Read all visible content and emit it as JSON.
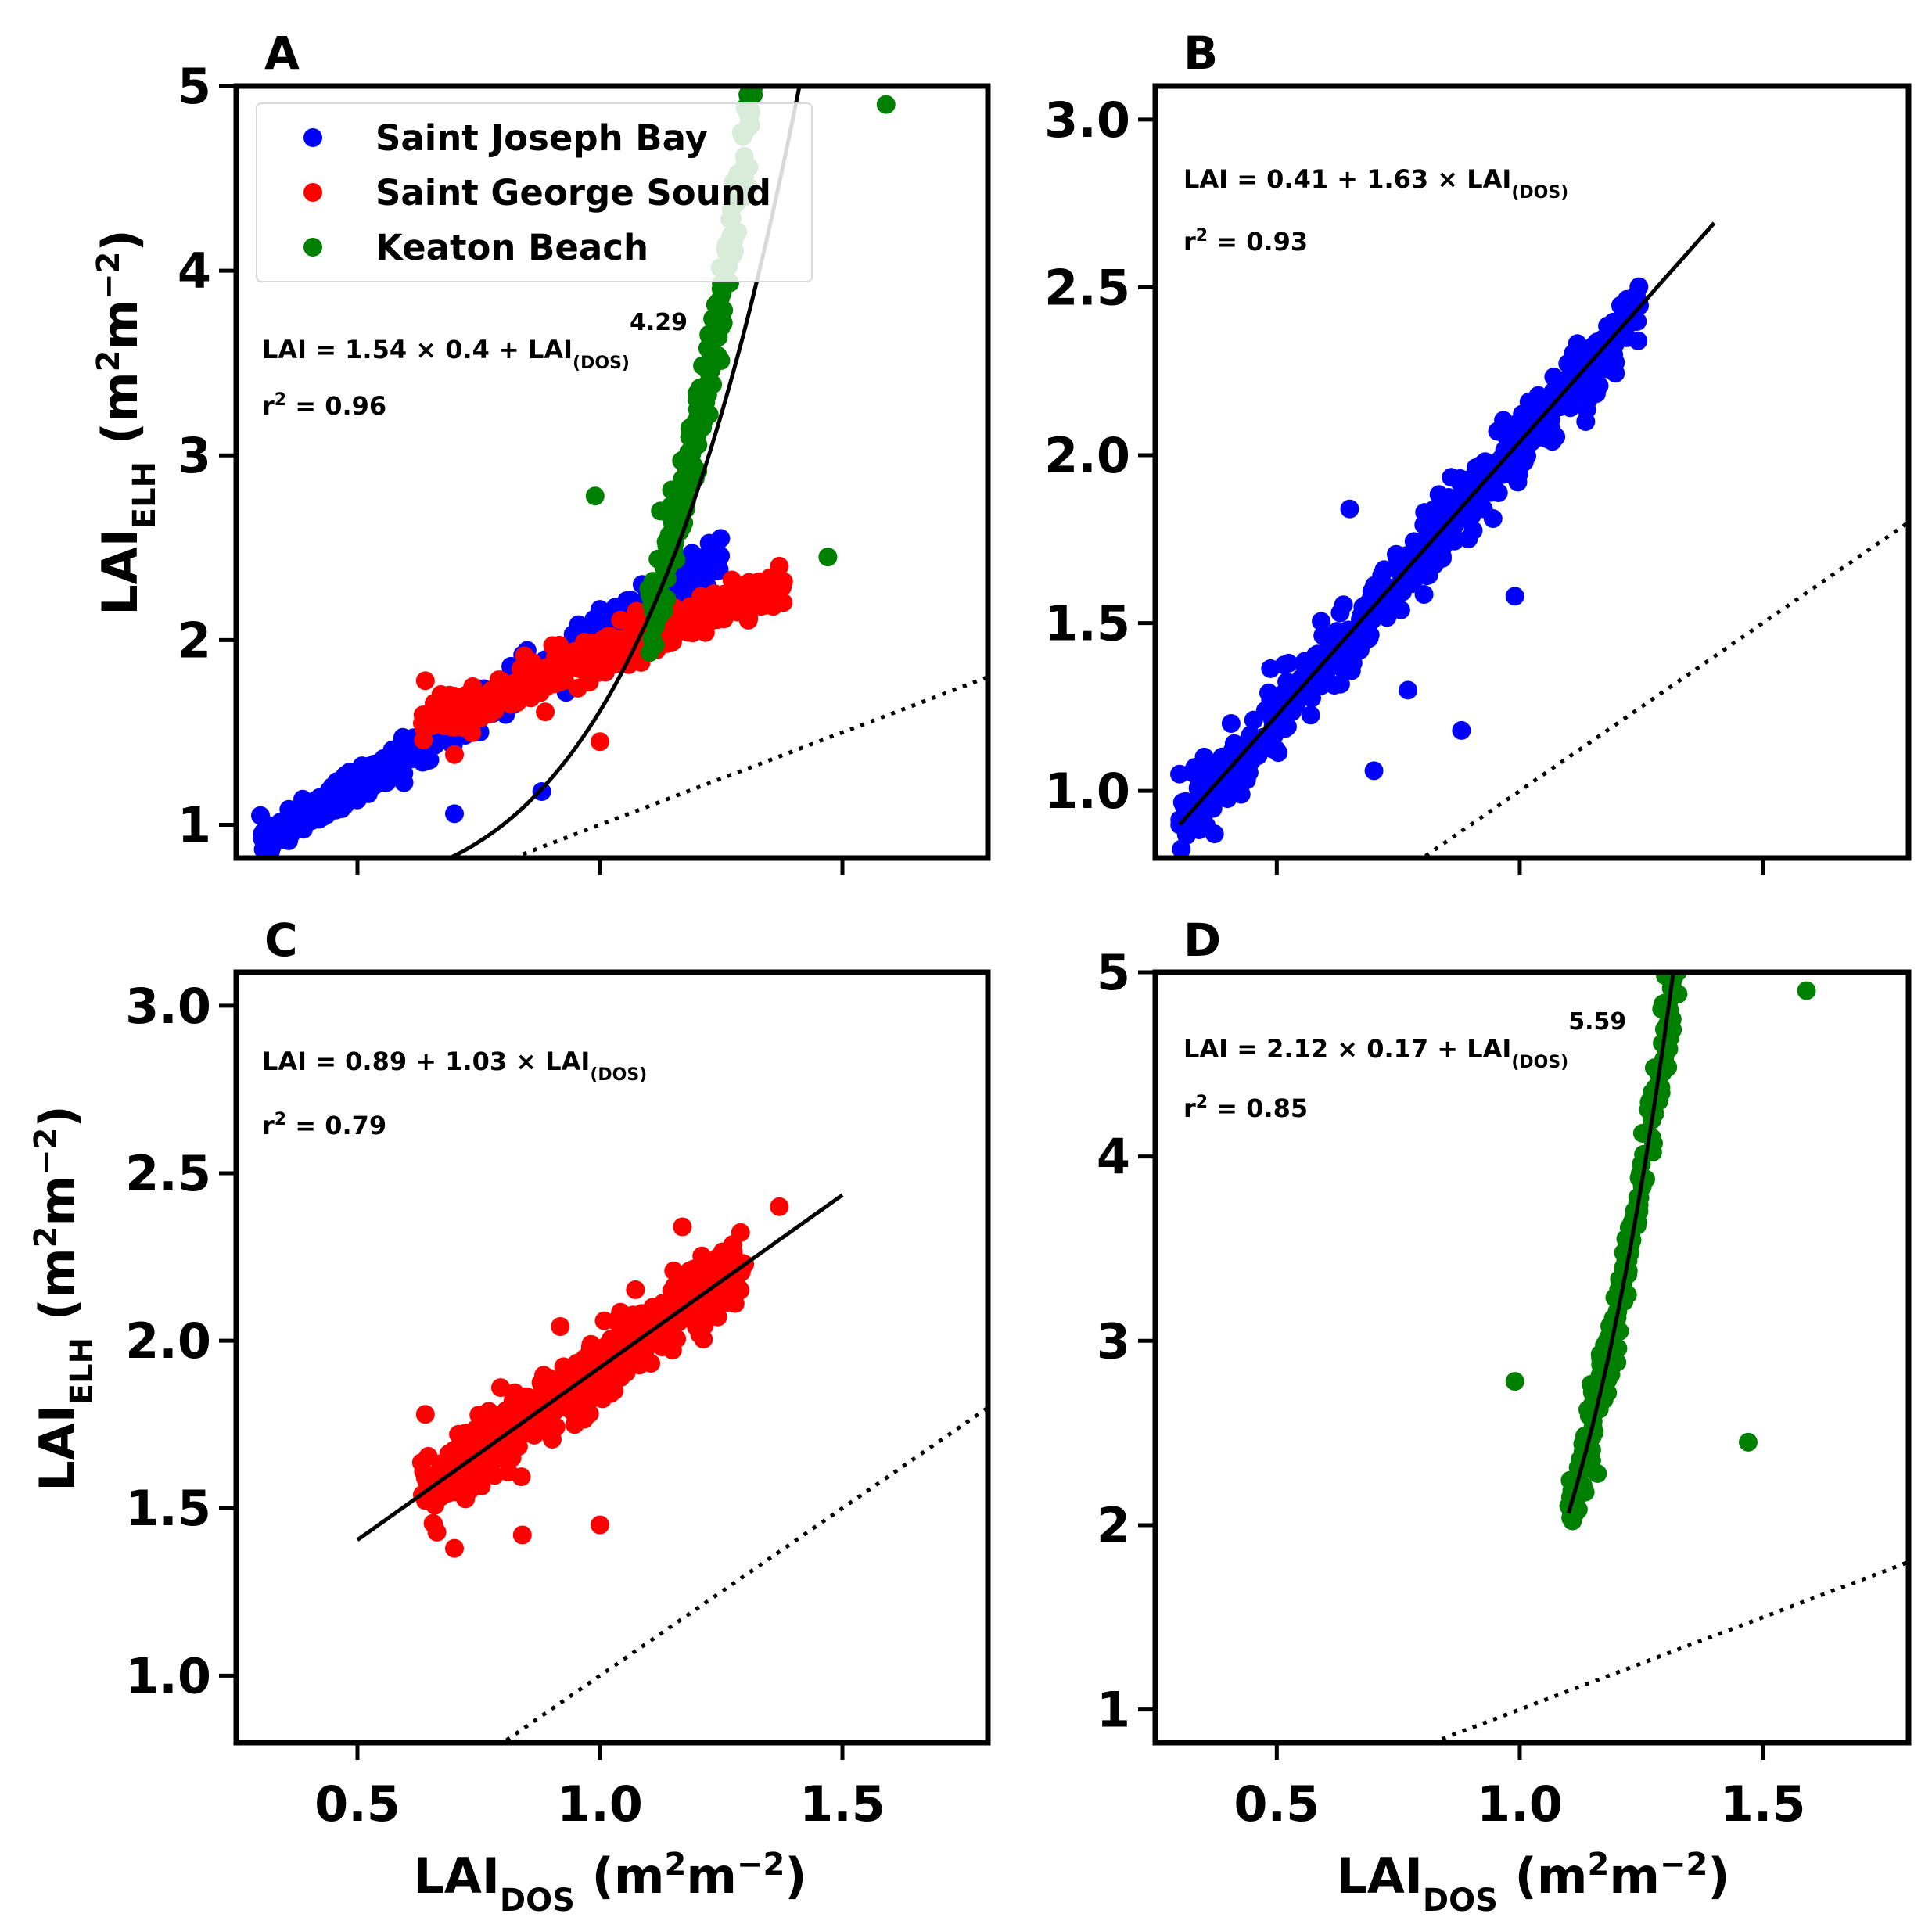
{
  "colors": {
    "sjb": "#0000ff",
    "sgs": "#ff0000",
    "kb": "#008000",
    "fit": "#000000",
    "frame": "#000000"
  },
  "legend": {
    "location": "upper-left of panel A",
    "items": [
      "Saint Joseph Bay",
      "Saint George Sound",
      "Keaton Beach"
    ]
  },
  "x_label": {
    "main": "LAI",
    "sub": "DOS",
    "unit_open": " (m",
    "exp1": "2",
    "unit_mid": "m",
    "exp2": "−2",
    "unit_close": ")"
  },
  "y_label": {
    "main": "LAI",
    "sub": "ELH",
    "unit_open": " (m",
    "exp1": "2",
    "unit_mid": "m",
    "exp2": "−2",
    "unit_close": ")"
  },
  "x_ticks": [
    "0.5",
    "1.0",
    "1.5"
  ],
  "chart_data": [
    {
      "panel": "A",
      "type": "scatter",
      "xlim": [
        0.25,
        1.8
      ],
      "ylim": [
        0.82,
        5.0
      ],
      "y_ticks": [
        1,
        2,
        3,
        4,
        5
      ],
      "y_tick_labels": [
        "1",
        "2",
        "3",
        "4",
        "5"
      ],
      "fit": {
        "kind": "power",
        "a": 1.54,
        "b": 0.4,
        "c": 4.29,
        "x_range": [
          0.4,
          1.66
        ]
      },
      "equation": {
        "pre": "LAI = 1.54 × 0.4 + LAI",
        "sub": "(DOS)",
        "post": "",
        "sup": "4.29"
      },
      "r2": {
        "pre": "r",
        "sup": "2",
        "post": " = 0.96"
      },
      "identity_line": true,
      "series": [
        {
          "name": "Saint Joseph Bay",
          "color_key": "sjb",
          "x_range": [
            0.3,
            1.25
          ],
          "model": "linear",
          "a": 0.41,
          "b": 1.63,
          "noise": 0.05,
          "n": 520
        },
        {
          "name": "Saint George Sound",
          "color_key": "sgs",
          "x_range": [
            0.63,
            1.38
          ],
          "model": "linear",
          "a": 0.89,
          "b": 1.03,
          "noise": 0.05,
          "n": 480
        },
        {
          "name": "Keaton Beach",
          "color_key": "kb",
          "x_range": [
            1.1,
            1.6
          ],
          "model": "power",
          "a": 2.12,
          "b": 0.17,
          "c": 5.59,
          "noise": 0.12,
          "n": 520
        }
      ],
      "outliers": [
        {
          "x": 0.3,
          "y": 1.05,
          "color_key": "sjb"
        },
        {
          "x": 0.7,
          "y": 1.06,
          "color_key": "sjb"
        },
        {
          "x": 0.88,
          "y": 1.18,
          "color_key": "sjb"
        },
        {
          "x": 0.64,
          "y": 1.78,
          "color_key": "sgs"
        },
        {
          "x": 0.7,
          "y": 1.38,
          "color_key": "sgs"
        },
        {
          "x": 1.0,
          "y": 1.45,
          "color_key": "sgs"
        },
        {
          "x": 1.37,
          "y": 2.4,
          "color_key": "sgs"
        },
        {
          "x": 0.99,
          "y": 2.78,
          "color_key": "kb"
        },
        {
          "x": 1.47,
          "y": 2.45,
          "color_key": "kb"
        },
        {
          "x": 1.59,
          "y": 4.9,
          "color_key": "kb"
        }
      ]
    },
    {
      "panel": "B",
      "type": "scatter",
      "xlim": [
        0.25,
        1.8
      ],
      "ylim": [
        0.8,
        3.1
      ],
      "y_ticks": [
        1.0,
        1.5,
        2.0,
        2.5,
        3.0
      ],
      "y_tick_labels": [
        "1.0",
        "1.5",
        "2.0",
        "2.5",
        "3.0"
      ],
      "fit": {
        "kind": "linear",
        "a": 0.41,
        "b": 1.63,
        "x_range": [
          0.3,
          1.4
        ]
      },
      "equation": {
        "pre": "LAI = 0.41 + 1.63 × LAI",
        "sub": "(DOS)",
        "post": "",
        "sup": ""
      },
      "r2": {
        "pre": "r",
        "sup": "2",
        "post": " = 0.93"
      },
      "identity_line": true,
      "series": [
        {
          "name": "Saint Joseph Bay",
          "color_key": "sjb",
          "x_range": [
            0.3,
            1.25
          ],
          "model": "linear",
          "a": 0.41,
          "b": 1.63,
          "noise": 0.05,
          "n": 520
        }
      ],
      "outliers": [
        {
          "x": 0.3,
          "y": 1.05,
          "color_key": "sjb"
        },
        {
          "x": 0.7,
          "y": 1.06,
          "color_key": "sjb"
        },
        {
          "x": 0.88,
          "y": 1.18,
          "color_key": "sjb"
        },
        {
          "x": 0.99,
          "y": 1.58,
          "color_key": "sjb"
        },
        {
          "x": 0.65,
          "y": 1.84,
          "color_key": "sjb"
        },
        {
          "x": 0.77,
          "y": 1.3,
          "color_key": "sjb"
        }
      ]
    },
    {
      "panel": "C",
      "type": "scatter",
      "xlim": [
        0.25,
        1.8
      ],
      "ylim": [
        0.8,
        3.1
      ],
      "y_ticks": [
        1.0,
        1.5,
        2.0,
        2.5,
        3.0
      ],
      "y_tick_labels": [
        "1.0",
        "1.5",
        "2.0",
        "2.5",
        "3.0"
      ],
      "fit": {
        "kind": "linear",
        "a": 0.89,
        "b": 1.03,
        "x_range": [
          0.5,
          1.5
        ]
      },
      "equation": {
        "pre": "LAI = 0.89 + 1.03 × LAI",
        "sub": "(DOS)",
        "post": "",
        "sup": ""
      },
      "r2": {
        "pre": "r",
        "sup": "2",
        "post": " = 0.79"
      },
      "identity_line": true,
      "series": [
        {
          "name": "Saint George Sound",
          "color_key": "sgs",
          "x_range": [
            0.63,
            1.3
          ],
          "model": "linear",
          "a": 0.89,
          "b": 1.03,
          "noise": 0.055,
          "n": 480
        }
      ],
      "outliers": [
        {
          "x": 0.64,
          "y": 1.78,
          "color_key": "sgs"
        },
        {
          "x": 0.7,
          "y": 1.38,
          "color_key": "sgs"
        },
        {
          "x": 0.84,
          "y": 1.42,
          "color_key": "sgs"
        },
        {
          "x": 1.0,
          "y": 1.45,
          "color_key": "sgs"
        },
        {
          "x": 1.37,
          "y": 2.4,
          "color_key": "sgs"
        },
        {
          "x": 1.17,
          "y": 2.34,
          "color_key": "sgs"
        }
      ]
    },
    {
      "panel": "D",
      "type": "scatter",
      "xlim": [
        0.25,
        1.8
      ],
      "ylim": [
        0.82,
        5.0
      ],
      "y_ticks": [
        1,
        2,
        3,
        4,
        5
      ],
      "y_tick_labels": [
        "1",
        "2",
        "3",
        "4",
        "5"
      ],
      "fit": {
        "kind": "power",
        "a": 2.12,
        "b": 0.17,
        "c": 5.59,
        "x_range": [
          1.1,
          1.6
        ]
      },
      "equation": {
        "pre": "LAI = 2.12 × 0.17 + LAI",
        "sub": "(DOS)",
        "post": "",
        "sup": "5.59"
      },
      "r2": {
        "pre": "r",
        "sup": "2",
        "post": " = 0.85"
      },
      "identity_line": true,
      "series": [
        {
          "name": "Keaton Beach",
          "color_key": "kb",
          "x_range": [
            1.1,
            1.6
          ],
          "model": "power",
          "a": 2.12,
          "b": 0.17,
          "c": 5.59,
          "noise": 0.12,
          "n": 520
        }
      ],
      "outliers": [
        {
          "x": 0.99,
          "y": 2.78,
          "color_key": "kb"
        },
        {
          "x": 1.47,
          "y": 2.45,
          "color_key": "kb"
        },
        {
          "x": 1.59,
          "y": 4.9,
          "color_key": "kb"
        },
        {
          "x": 1.16,
          "y": 2.28,
          "color_key": "kb"
        },
        {
          "x": 1.2,
          "y": 3.07,
          "color_key": "kb"
        }
      ]
    }
  ]
}
